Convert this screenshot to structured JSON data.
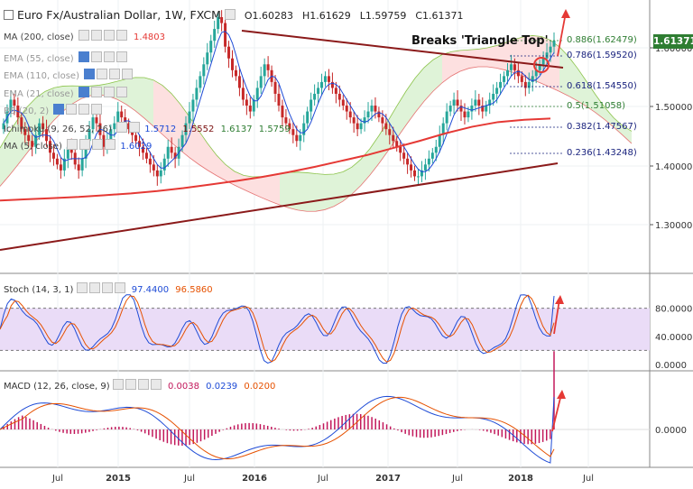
{
  "header": {
    "symbol": "Euro Fx/Australian Dollar, 1W, FXCM",
    "open": "O1.60283",
    "high": "H1.61629",
    "low": "L1.59759",
    "close": "C1.61371"
  },
  "indicators": {
    "ma200": {
      "label": "MA (200, close)",
      "value": "1.4803"
    },
    "ema55": {
      "label": "EMA (55, close)"
    },
    "ema110": {
      "label": "EMA (110, close)"
    },
    "ema21": {
      "label": "EMA (21, close)"
    },
    "bb": {
      "label": "BB (20, 2)"
    },
    "ichimoku": {
      "label": "Ichimoku (9, 26, 52, 26)",
      "values": [
        "1.5712",
        "1.5552",
        "1.6137",
        "1.5759"
      ]
    },
    "ma5": {
      "label": "MA (5, close)",
      "value": "1.6029"
    }
  },
  "price_label": "1.61371",
  "annotation": "Breaks 'Triangle Top'",
  "fib_levels": [
    {
      "label": "0.886(1.62479)",
      "value": 1.62479,
      "color": "#2e7d32"
    },
    {
      "label": "0.786(1.59520)",
      "value": 1.5952,
      "color": "#1a237e"
    },
    {
      "label": "0.618(1.54550)",
      "value": 1.5455,
      "color": "#1a237e"
    },
    {
      "label": "0.5(1.51058)",
      "value": 1.51058,
      "color": "#2e7d32"
    },
    {
      "label": "0.382(1.47567)",
      "value": 1.47567,
      "color": "#1a237e"
    },
    {
      "label": "0.236(1.43248)",
      "value": 1.43248,
      "color": "#1a237e"
    }
  ],
  "price_axis": [
    "1.60000",
    "1.50000",
    "1.40000",
    "1.30000"
  ],
  "stoch": {
    "label": "Stoch (14, 3, 1)",
    "k": "97.4400",
    "d": "96.5860",
    "axis": [
      "80.0000",
      "40.0000",
      "0.0000"
    ]
  },
  "macd": {
    "label": "MACD (12, 26, close, 9)",
    "hist": "0.0038",
    "macd": "0.0239",
    "signal": "0.0200",
    "axis": [
      "0.0000"
    ]
  },
  "time_axis": [
    "Jul",
    "2015",
    "Jul",
    "2016",
    "Jul",
    "2017",
    "Jul",
    "2018",
    "Jul"
  ],
  "colors": {
    "bull": "#26a69a",
    "bear": "#c62828",
    "ma200": "#e53935",
    "trend": "#8b1a1a",
    "arrow": "#e53935",
    "ma5": "#1e4bd6"
  },
  "chart_data": {
    "type": "candlestick",
    "interval": "weekly",
    "x_range": [
      "2014-03",
      "2018-04"
    ],
    "ylim": [
      1.2,
      1.7
    ],
    "close": [
      1.472,
      1.492,
      1.512,
      1.502,
      1.482,
      1.462,
      1.452,
      1.442,
      1.432,
      1.452,
      1.472,
      1.462,
      1.442,
      1.422,
      1.412,
      1.402,
      1.392,
      1.412,
      1.432,
      1.422,
      1.402,
      1.392,
      1.412,
      1.442,
      1.462,
      1.482,
      1.472,
      1.452,
      1.432,
      1.442,
      1.462,
      1.472,
      1.492,
      1.482,
      1.472,
      1.462,
      1.452,
      1.442,
      1.432,
      1.422,
      1.412,
      1.402,
      1.392,
      1.382,
      1.392,
      1.412,
      1.432,
      1.422,
      1.412,
      1.432,
      1.452,
      1.472,
      1.492,
      1.512,
      1.532,
      1.552,
      1.572,
      1.592,
      1.612,
      1.632,
      1.652,
      1.642,
      1.602,
      1.582,
      1.562,
      1.552,
      1.532,
      1.512,
      1.502,
      1.492,
      1.512,
      1.532,
      1.552,
      1.572,
      1.562,
      1.542,
      1.522,
      1.502,
      1.482,
      1.472,
      1.462,
      1.452,
      1.442,
      1.452,
      1.472,
      1.492,
      1.512,
      1.522,
      1.532,
      1.542,
      1.552,
      1.542,
      1.532,
      1.522,
      1.512,
      1.502,
      1.492,
      1.482,
      1.472,
      1.462,
      1.472,
      1.482,
      1.492,
      1.502,
      1.492,
      1.482,
      1.472,
      1.462,
      1.452,
      1.442,
      1.432,
      1.422,
      1.412,
      1.402,
      1.392,
      1.382,
      1.382,
      1.392,
      1.402,
      1.412,
      1.422,
      1.432,
      1.452,
      1.472,
      1.492,
      1.502,
      1.512,
      1.502,
      1.492,
      1.482,
      1.492,
      1.502,
      1.512,
      1.502,
      1.492,
      1.502,
      1.512,
      1.522,
      1.532,
      1.542,
      1.552,
      1.562,
      1.572,
      1.562,
      1.552,
      1.542,
      1.532,
      1.542,
      1.552,
      1.562,
      1.572,
      1.582,
      1.592,
      1.602,
      1.612
    ],
    "ma200": [
      1.341,
      1.343,
      1.345,
      1.347,
      1.35,
      1.353,
      1.357,
      1.362,
      1.368,
      1.374,
      1.381,
      1.389,
      1.398,
      1.408,
      1.418,
      1.43,
      1.442,
      1.455,
      1.466,
      1.474,
      1.478,
      1.48
    ],
    "trend_upper": {
      "from": [
        "2015-11",
        1.672
      ],
      "to": [
        "2018-04",
        1.568
      ]
    },
    "trend_lower": {
      "from": [
        "2014-03",
        1.258
      ],
      "to": [
        "2018-04",
        1.405
      ]
    },
    "stoch_range": [
      0,
      100
    ],
    "macd_zero": 0
  }
}
